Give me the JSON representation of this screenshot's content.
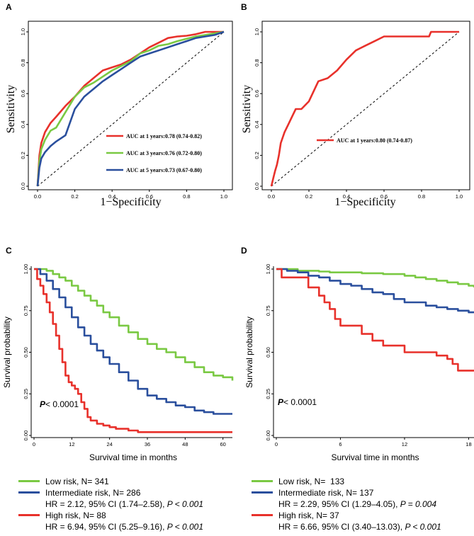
{
  "colors": {
    "red": "#e8312b",
    "green": "#7ac943",
    "blue": "#2a4f9d",
    "black": "#000000"
  },
  "chart_data": [
    {
      "panel": "A",
      "type": "line",
      "xlabel": "1−Specificity",
      "ylabel": "Sensitivity",
      "xlim": [
        0,
        1
      ],
      "ylim": [
        0,
        1
      ],
      "xticks": [
        "0.0",
        "0.2",
        "0.4",
        "0.6",
        "0.8",
        "1.0"
      ],
      "yticks": [
        "0.0",
        "0.2",
        "0.4",
        "0.6",
        "0.8",
        "1.0"
      ],
      "legend": "bottom-right",
      "series": [
        {
          "name": "AUC at 1 years:0.78 (0.74-0.82)",
          "color": "#e8312b",
          "x": [
            0,
            0.01,
            0.02,
            0.04,
            0.07,
            0.1,
            0.15,
            0.2,
            0.25,
            0.3,
            0.35,
            0.4,
            0.45,
            0.5,
            0.55,
            0.6,
            0.65,
            0.7,
            0.75,
            0.8,
            0.85,
            0.9,
            0.95,
            1
          ],
          "y": [
            0,
            0.2,
            0.28,
            0.35,
            0.41,
            0.45,
            0.52,
            0.58,
            0.65,
            0.7,
            0.75,
            0.77,
            0.79,
            0.82,
            0.86,
            0.9,
            0.93,
            0.96,
            0.97,
            0.975,
            0.985,
            1,
            1,
            1
          ]
        },
        {
          "name": "AUC at 3 years:0.76 (0.72-0.80)",
          "color": "#7ac943",
          "x": [
            0,
            0.01,
            0.02,
            0.04,
            0.07,
            0.1,
            0.15,
            0.2,
            0.25,
            0.3,
            0.35,
            0.4,
            0.45,
            0.5,
            0.55,
            0.6,
            0.65,
            0.7,
            0.75,
            0.8,
            0.85,
            0.9,
            0.95,
            1
          ],
          "y": [
            0,
            0.16,
            0.24,
            0.3,
            0.36,
            0.38,
            0.48,
            0.58,
            0.64,
            0.67,
            0.71,
            0.75,
            0.78,
            0.81,
            0.86,
            0.88,
            0.91,
            0.92,
            0.94,
            0.955,
            0.97,
            0.98,
            0.99,
            1
          ]
        },
        {
          "name": "AUC at 5 years:0.73 (0.67-0.80)",
          "color": "#2a4f9d",
          "x": [
            0,
            0.01,
            0.02,
            0.04,
            0.07,
            0.1,
            0.15,
            0.2,
            0.25,
            0.3,
            0.35,
            0.4,
            0.45,
            0.5,
            0.55,
            0.6,
            0.65,
            0.7,
            0.75,
            0.8,
            0.85,
            0.9,
            0.95,
            1
          ],
          "y": [
            0,
            0.12,
            0.18,
            0.22,
            0.26,
            0.29,
            0.33,
            0.5,
            0.58,
            0.63,
            0.68,
            0.72,
            0.76,
            0.8,
            0.84,
            0.86,
            0.88,
            0.9,
            0.92,
            0.94,
            0.96,
            0.97,
            0.98,
            1
          ]
        }
      ]
    },
    {
      "panel": "B",
      "type": "line",
      "xlabel": "1−Specificity",
      "ylabel": "Sensitivity",
      "xlim": [
        0,
        1
      ],
      "ylim": [
        0,
        1
      ],
      "xticks": [
        "0.0",
        "0.2",
        "0.4",
        "0.6",
        "0.8",
        "1.0"
      ],
      "yticks": [
        "0.0",
        "0.2",
        "0.4",
        "0.6",
        "0.8",
        "1.0"
      ],
      "legend": "right",
      "series": [
        {
          "name": "AUC at 1 years:0.80 (0.74-0.87)",
          "color": "#e8312b",
          "x": [
            0,
            0.01,
            0.02,
            0.03,
            0.04,
            0.05,
            0.07,
            0.09,
            0.11,
            0.13,
            0.16,
            0.2,
            0.25,
            0.3,
            0.35,
            0.4,
            0.45,
            0.5,
            0.55,
            0.6,
            0.7,
            0.8,
            0.84,
            0.85,
            0.9,
            0.95,
            1
          ],
          "y": [
            0,
            0.05,
            0.1,
            0.14,
            0.2,
            0.28,
            0.35,
            0.4,
            0.45,
            0.5,
            0.5,
            0.55,
            0.68,
            0.7,
            0.75,
            0.82,
            0.88,
            0.91,
            0.94,
            0.97,
            0.97,
            0.97,
            0.97,
            1,
            1,
            1,
            1
          ]
        }
      ]
    },
    {
      "panel": "C",
      "type": "line",
      "xlabel": "Survival time in months",
      "ylabel": "Survival probability",
      "xlim": [
        0,
        63
      ],
      "ylim": [
        0,
        1
      ],
      "xticks": [
        "0",
        "12",
        "24",
        "36",
        "48",
        "60"
      ],
      "yticks": [
        "0.00",
        "0.25",
        "0.50",
        "0.75",
        "1.00"
      ],
      "annotation": {
        "p": "P",
        "text": "< 0.0001"
      },
      "series": [
        {
          "name": "Low risk, N= 341",
          "color": "#7ac943",
          "x": [
            0,
            2,
            4,
            6,
            8,
            10,
            12,
            14,
            16,
            18,
            20,
            22,
            24,
            27,
            30,
            33,
            36,
            39,
            42,
            45,
            48,
            51,
            54,
            57,
            60,
            63
          ],
          "y": [
            1,
            1,
            0.99,
            0.97,
            0.95,
            0.93,
            0.9,
            0.87,
            0.84,
            0.81,
            0.78,
            0.74,
            0.71,
            0.66,
            0.62,
            0.58,
            0.55,
            0.52,
            0.5,
            0.47,
            0.44,
            0.41,
            0.38,
            0.36,
            0.35,
            0.33
          ]
        },
        {
          "name": "Intermediate risk, N= 286",
          "color": "#2a4f9d",
          "x": [
            0,
            2,
            4,
            6,
            8,
            10,
            12,
            14,
            16,
            18,
            20,
            22,
            24,
            27,
            30,
            33,
            36,
            39,
            42,
            45,
            48,
            51,
            54,
            57,
            60,
            63
          ],
          "y": [
            1,
            0.97,
            0.93,
            0.88,
            0.83,
            0.77,
            0.71,
            0.65,
            0.6,
            0.55,
            0.51,
            0.47,
            0.43,
            0.38,
            0.33,
            0.28,
            0.24,
            0.22,
            0.2,
            0.18,
            0.17,
            0.15,
            0.14,
            0.13,
            0.13,
            0.13
          ]
        },
        {
          "name": "High risk, N= 88",
          "color": "#e8312b",
          "x": [
            0,
            1,
            2,
            3,
            4,
            5,
            6,
            7,
            8,
            9,
            10,
            11,
            12,
            13,
            14,
            15,
            16,
            17,
            18,
            20,
            22,
            24,
            26,
            28,
            30,
            33,
            36,
            45,
            55,
            63
          ],
          "y": [
            1,
            0.94,
            0.9,
            0.85,
            0.8,
            0.74,
            0.67,
            0.6,
            0.52,
            0.44,
            0.36,
            0.32,
            0.3,
            0.28,
            0.25,
            0.2,
            0.16,
            0.11,
            0.09,
            0.07,
            0.06,
            0.05,
            0.04,
            0.04,
            0.03,
            0.02,
            0.02,
            0.02,
            0.02,
            0.02
          ]
        }
      ]
    },
    {
      "panel": "D",
      "type": "line",
      "xlabel": "Survival time in months",
      "ylabel": "Survival probability",
      "xlim": [
        0,
        18.5
      ],
      "ylim": [
        0,
        1
      ],
      "xticks": [
        "0",
        "6",
        "12",
        "18"
      ],
      "yticks": [
        "0.00",
        "0.25",
        "0.50",
        "0.75",
        "1.00"
      ],
      "annotation": {
        "p": "P",
        "text": "< 0.0001"
      },
      "series": [
        {
          "name": "Low risk, N=  133",
          "color": "#7ac943",
          "x": [
            0,
            1,
            2,
            3,
            4,
            5,
            6,
            7,
            8,
            9,
            10,
            11,
            12,
            13,
            14,
            15,
            16,
            17,
            18,
            18.5
          ],
          "y": [
            1,
            1,
            0.99,
            0.99,
            0.985,
            0.98,
            0.98,
            0.98,
            0.975,
            0.975,
            0.97,
            0.97,
            0.96,
            0.95,
            0.94,
            0.93,
            0.92,
            0.91,
            0.9,
            0.89
          ]
        },
        {
          "name": "Intermediate risk, N= 137",
          "color": "#2a4f9d",
          "x": [
            0,
            1,
            2,
            3,
            4,
            5,
            6,
            7,
            8,
            9,
            10,
            11,
            12,
            13,
            14,
            15,
            16,
            17,
            18,
            18.5
          ],
          "y": [
            1,
            0.99,
            0.98,
            0.96,
            0.95,
            0.93,
            0.91,
            0.9,
            0.88,
            0.86,
            0.85,
            0.82,
            0.8,
            0.8,
            0.78,
            0.77,
            0.76,
            0.75,
            0.74,
            0.74
          ]
        },
        {
          "name": "High risk, N= 37",
          "color": "#e8312b",
          "x": [
            0,
            0.5,
            1,
            2,
            3,
            4,
            4.5,
            5,
            5.5,
            6,
            7,
            8,
            9,
            10,
            11,
            12,
            13,
            14,
            15,
            16,
            16.5,
            17,
            18,
            18.5
          ],
          "y": [
            1,
            0.95,
            0.95,
            0.95,
            0.89,
            0.84,
            0.8,
            0.76,
            0.7,
            0.66,
            0.66,
            0.61,
            0.57,
            0.54,
            0.54,
            0.5,
            0.5,
            0.5,
            0.48,
            0.46,
            0.43,
            0.39,
            0.39,
            0.39
          ]
        }
      ]
    }
  ],
  "panel_labels": [
    "A",
    "B",
    "C",
    "D"
  ],
  "legend_c": {
    "low": "Low risk, N= 341",
    "intermediate": "Intermediate risk, N= 286",
    "intermediate_hr": "HR = 2.12, 95% CI (1.74–2.58), ",
    "intermediate_p": "P < 0.001",
    "high": "High risk, N= 88",
    "high_hr": "HR = 6.94, 95% CI (5.25–9.16), ",
    "high_p": "P < 0.001"
  },
  "legend_d": {
    "low": "Low risk, N=  133",
    "intermediate": "Intermediate risk, N= 137",
    "intermediate_hr": "HR = 2.29, 95% CI (1.29–4.05), ",
    "intermediate_p": "P = 0.004",
    "high": "High risk, N= 37",
    "high_hr": "HR = 6.66, 95% CI (3.40–13.03), ",
    "high_p": "P < 0.001"
  }
}
